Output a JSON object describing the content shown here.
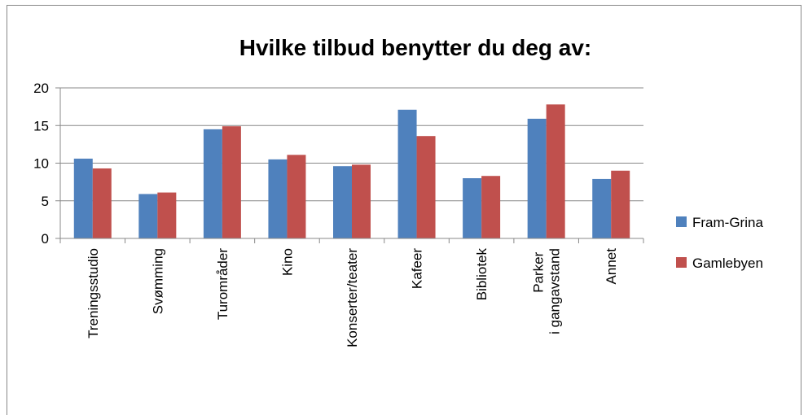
{
  "chart_data": {
    "type": "bar",
    "title": "Hvilke tilbud benytter du deg av:",
    "categories": [
      "Treningsstudio",
      "Svømming",
      "Turområder",
      "Kino",
      "Konserter/teater",
      "Kafeer",
      "Bibliotek",
      "Parker i gangavstand",
      "Annet"
    ],
    "series": [
      {
        "name": "Fram-Grina",
        "color": "#4f81bd",
        "values": [
          10.6,
          5.9,
          14.5,
          10.5,
          9.6,
          17.1,
          8.0,
          15.9,
          7.9
        ]
      },
      {
        "name": "Gamlebyen",
        "color": "#c0504d",
        "values": [
          9.3,
          6.1,
          14.9,
          11.1,
          9.8,
          13.6,
          8.3,
          17.8,
          9.0
        ]
      }
    ],
    "ylim": [
      0,
      20
    ],
    "yticks": [
      0,
      5,
      10,
      15,
      20
    ],
    "grid": true,
    "legend": "right"
  }
}
